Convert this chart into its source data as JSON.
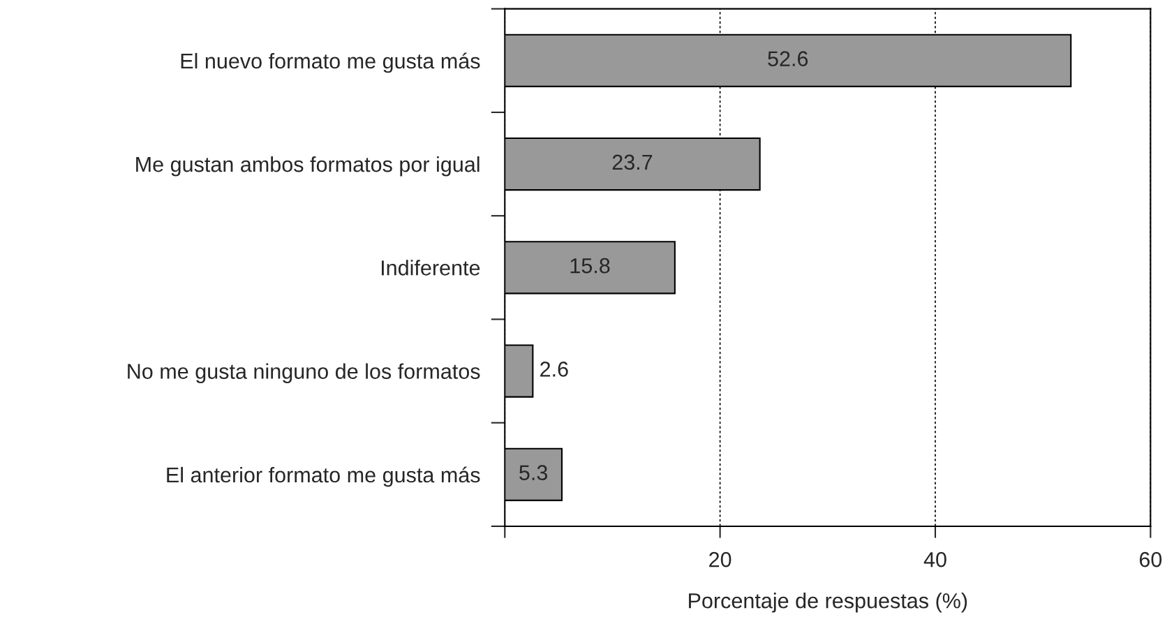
{
  "chart_data": {
    "type": "bar",
    "orientation": "horizontal",
    "xlabel": "Porcentaje de respuestas (%)",
    "categories": [
      "El nuevo formato me gusta más",
      "Me gustan ambos formatos por igual",
      "Indiferente",
      "No me gusta ninguno de los formatos",
      "El anterior formato me gusta más"
    ],
    "values": [
      52.6,
      23.7,
      15.8,
      2.6,
      5.3
    ],
    "color": "#999999",
    "xlim": [
      0,
      60
    ],
    "xticks": [
      {
        "value": 0,
        "label": null
      },
      20,
      40,
      60
    ],
    "grid": "x",
    "data_labels": true
  }
}
